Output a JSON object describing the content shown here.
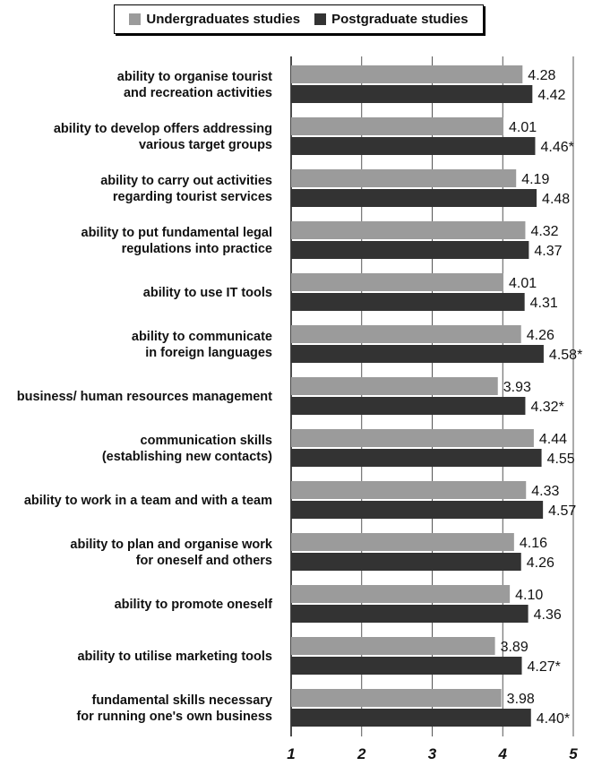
{
  "chart_data": {
    "type": "bar",
    "orientation": "horizontal",
    "categories": [
      [
        "ability to organise tourist",
        "and recreation activities"
      ],
      [
        "ability to develop offers addressing",
        "various target groups"
      ],
      [
        "ability to carry out activities",
        "regarding tourist services"
      ],
      [
        "ability to put fundamental legal",
        "regulations into practice"
      ],
      [
        "ability to use IT tools"
      ],
      [
        "ability to communicate",
        "in foreign languages"
      ],
      [
        "business/ human resources management"
      ],
      [
        "communication skills",
        "(establishing new contacts)"
      ],
      [
        "ability to work in a team and with a team"
      ],
      [
        "ability to plan and organise work",
        "for oneself and others"
      ],
      [
        "ability to promote oneself"
      ],
      [
        "ability to utilise marketing tools"
      ],
      [
        "fundamental skills necessary",
        "for running one's own business"
      ]
    ],
    "series": [
      {
        "name": "Undergraduates studies",
        "color": "#9b9b9b",
        "values": [
          4.28,
          4.01,
          4.19,
          4.32,
          4.01,
          4.26,
          3.93,
          4.44,
          4.33,
          4.16,
          4.1,
          3.89,
          3.98
        ],
        "labels": [
          "4.28",
          "4.01",
          "4.19",
          "4.32",
          "4.01",
          "4.26",
          "3.93",
          "4.44",
          "4.33",
          "4.16",
          "4.10",
          "3.89",
          "3.98"
        ]
      },
      {
        "name": "Postgraduate studies",
        "color": "#333333",
        "values": [
          4.42,
          4.46,
          4.48,
          4.37,
          4.31,
          4.58,
          4.32,
          4.55,
          4.57,
          4.26,
          4.36,
          4.27,
          4.4
        ],
        "labels": [
          "4.42",
          "4.46*",
          "4.48",
          "4.37",
          "4.31",
          "4.58*",
          "4.32*",
          "4.55",
          "4.57",
          "4.26",
          "4.36",
          "4.27*",
          "4.40*"
        ]
      }
    ],
    "xlim": [
      1,
      5
    ],
    "xticks": [
      "1",
      "2",
      "3",
      "4",
      "5"
    ],
    "grid": true,
    "legend_position": "top"
  }
}
